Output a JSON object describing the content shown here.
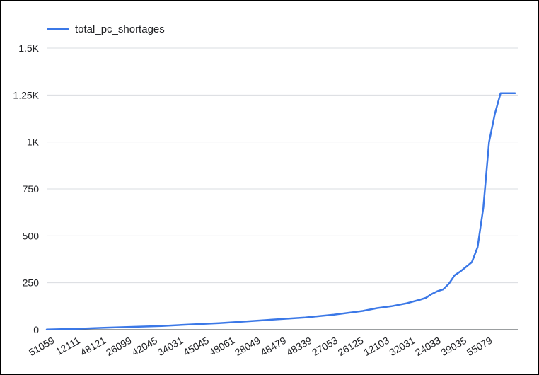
{
  "chart_data": {
    "type": "line",
    "series": [
      {
        "name": "total_pc_shortages",
        "color": "#3b78e7",
        "x": [
          0,
          10,
          20,
          30,
          40,
          50,
          60,
          70,
          80,
          90,
          100,
          110,
          115,
          120,
          125,
          130,
          132,
          134,
          136,
          138,
          140,
          142,
          144,
          146,
          148,
          150,
          152,
          154,
          156,
          158,
          160,
          162,
          163
        ],
        "values": [
          1,
          5,
          10,
          15,
          20,
          28,
          35,
          45,
          55,
          65,
          80,
          100,
          115,
          125,
          140,
          160,
          170,
          190,
          205,
          215,
          245,
          290,
          310,
          335,
          360,
          440,
          650,
          1000,
          1150,
          1260,
          1260,
          1260,
          1260
        ]
      }
    ],
    "x_tick_labels": [
      "51059",
      "12111",
      "48121",
      "26099",
      "42045",
      "34031",
      "45045",
      "48061",
      "28049",
      "48479",
      "48339",
      "27053",
      "26125",
      "12103",
      "32031",
      "24033",
      "39035",
      "55079"
    ],
    "y_ticks": [
      0,
      250,
      500,
      750,
      1000,
      1250,
      1500
    ],
    "y_tick_labels": [
      "0",
      "250",
      "500",
      "750",
      "1K",
      "1.25K",
      "1.5K"
    ],
    "ylim": [
      0,
      1500
    ],
    "grid": true,
    "legend_position": "top-left",
    "title": "",
    "xlabel": "",
    "ylabel": ""
  }
}
